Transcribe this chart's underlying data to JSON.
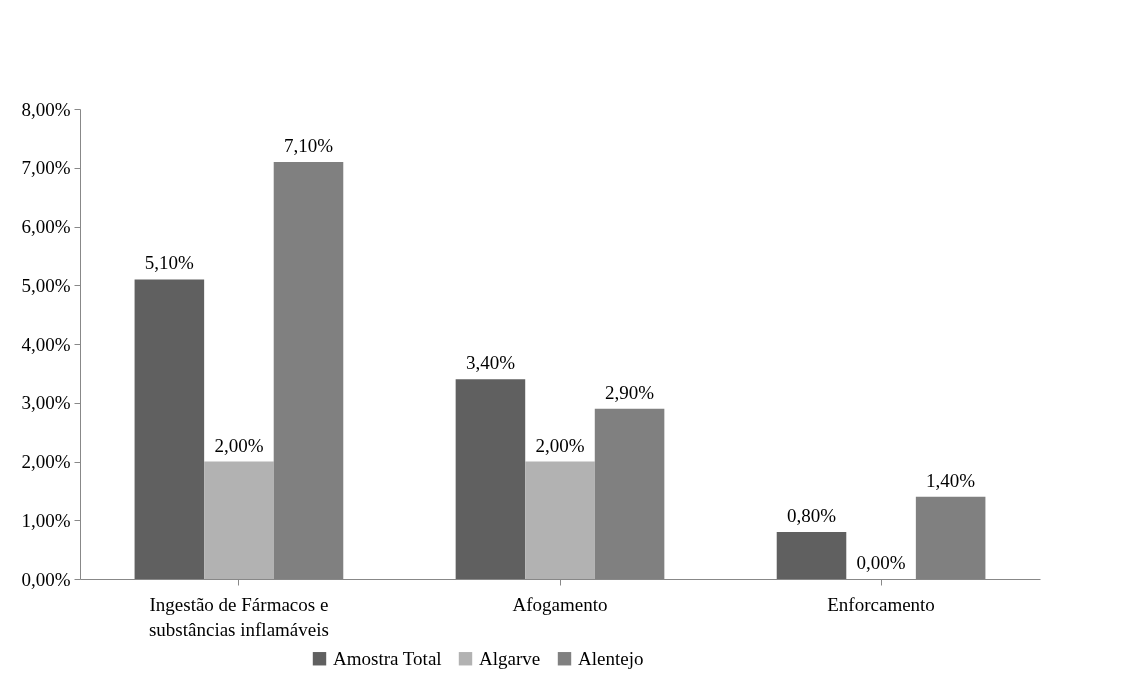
{
  "chart_data": {
    "type": "bar",
    "categories": [
      "Ingestão de Fármacos e substâncias inflamáveis",
      "Afogamento",
      "Enforcamento"
    ],
    "series": [
      {
        "name": "Amostra Total",
        "color": "#606060",
        "values": [
          5.1,
          3.4,
          0.8
        ],
        "value_labels": [
          "5,10%",
          "3,40%",
          "0,80%"
        ]
      },
      {
        "name": "Algarve",
        "color": "#b2b2b2",
        "values": [
          2.0,
          2.0,
          0.0
        ],
        "value_labels": [
          "2,00%",
          "2,00%",
          "0,00%"
        ]
      },
      {
        "name": "Alentejo",
        "color": "#808080",
        "values": [
          7.1,
          2.9,
          1.4
        ],
        "value_labels": [
          "7,10%",
          "2,90%",
          "1,40%"
        ]
      }
    ],
    "ylim": [
      0,
      8
    ],
    "yticks": [
      {
        "value": 0,
        "label": "0,00%"
      },
      {
        "value": 1,
        "label": "1,00%"
      },
      {
        "value": 2,
        "label": "2,00%"
      },
      {
        "value": 3,
        "label": "3,00%"
      },
      {
        "value": 4,
        "label": "4,00%"
      },
      {
        "value": 5,
        "label": "5,00%"
      },
      {
        "value": 6,
        "label": "6,00%"
      },
      {
        "value": 7,
        "label": "7,00%"
      },
      {
        "value": 8,
        "label": "8,00%"
      }
    ],
    "grid": false,
    "legend": "bottom"
  }
}
